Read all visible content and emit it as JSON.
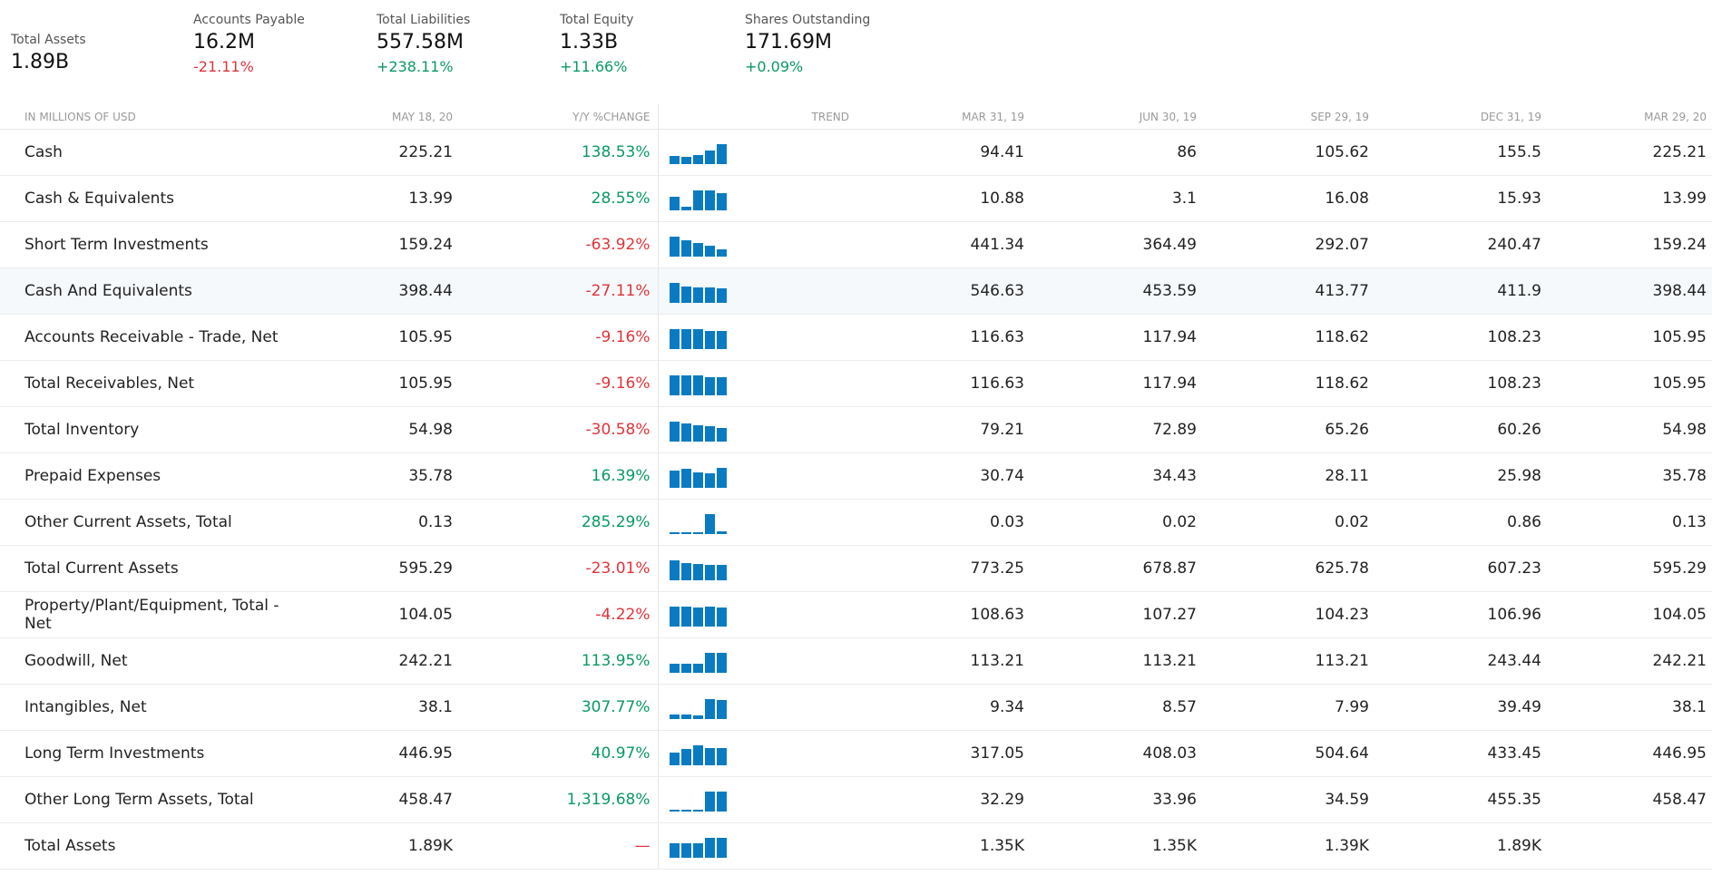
{
  "summary": [
    {
      "label": "Total Assets",
      "value": "1.89B",
      "change": "",
      "dir": ""
    },
    {
      "label": "Accounts Payable",
      "value": "16.2M",
      "change": "-21.11%",
      "dir": "neg"
    },
    {
      "label": "Total Liabilities",
      "value": "557.58M",
      "change": "+238.11%",
      "dir": "pos"
    },
    {
      "label": "Total Equity",
      "value": "1.33B",
      "change": "+11.66%",
      "dir": "pos"
    },
    {
      "label": "Shares Outstanding",
      "value": "171.69M",
      "change": "+0.09%",
      "dir": "pos"
    }
  ],
  "table": {
    "headers": {
      "name": "IN MILLIONS OF USD",
      "current": "MAY 18, 20",
      "change": "Y/Y %CHANGE",
      "trend": "TREND",
      "periods": [
        "MAR 31, 19",
        "JUN 30, 19",
        "SEP 29, 19",
        "DEC 31, 19",
        "MAR 29, 20"
      ]
    },
    "colors": {
      "positive": "#0a9a62",
      "negative": "#e0343a",
      "bar": "#0a7bc2"
    },
    "rows": [
      {
        "name": "Cash",
        "current": "225.21",
        "change": "138.53%",
        "dir": "pos",
        "values": [
          "94.41",
          "86",
          "105.62",
          "155.5",
          "225.21"
        ],
        "trend": [
          94.41,
          86,
          105.62,
          155.5,
          225.21
        ]
      },
      {
        "name": "Cash & Equivalents",
        "current": "13.99",
        "change": "28.55%",
        "dir": "pos",
        "values": [
          "10.88",
          "3.1",
          "16.08",
          "15.93",
          "13.99"
        ],
        "trend": [
          10.88,
          3.1,
          16.08,
          15.93,
          13.99
        ]
      },
      {
        "name": "Short Term Investments",
        "current": "159.24",
        "change": "-63.92%",
        "dir": "neg",
        "values": [
          "441.34",
          "364.49",
          "292.07",
          "240.47",
          "159.24"
        ],
        "trend": [
          441.34,
          364.49,
          292.07,
          240.47,
          159.24
        ]
      },
      {
        "name": "Cash And Equivalents",
        "current": "398.44",
        "change": "-27.11%",
        "dir": "neg",
        "values": [
          "546.63",
          "453.59",
          "413.77",
          "411.9",
          "398.44"
        ],
        "trend": [
          546.63,
          453.59,
          413.77,
          411.9,
          398.44
        ],
        "highlight": true
      },
      {
        "name": "Accounts Receivable - Trade, Net",
        "current": "105.95",
        "change": "-9.16%",
        "dir": "neg",
        "values": [
          "116.63",
          "117.94",
          "118.62",
          "108.23",
          "105.95"
        ],
        "trend": [
          116.63,
          117.94,
          118.62,
          108.23,
          105.95
        ]
      },
      {
        "name": "Total Receivables, Net",
        "current": "105.95",
        "change": "-9.16%",
        "dir": "neg",
        "values": [
          "116.63",
          "117.94",
          "118.62",
          "108.23",
          "105.95"
        ],
        "trend": [
          116.63,
          117.94,
          118.62,
          108.23,
          105.95
        ]
      },
      {
        "name": "Total Inventory",
        "current": "54.98",
        "change": "-30.58%",
        "dir": "neg",
        "values": [
          "79.21",
          "72.89",
          "65.26",
          "60.26",
          "54.98"
        ],
        "trend": [
          79.21,
          72.89,
          65.26,
          60.26,
          54.98
        ]
      },
      {
        "name": "Prepaid Expenses",
        "current": "35.78",
        "change": "16.39%",
        "dir": "pos",
        "values": [
          "30.74",
          "34.43",
          "28.11",
          "25.98",
          "35.78"
        ],
        "trend": [
          30.74,
          34.43,
          28.11,
          25.98,
          35.78
        ]
      },
      {
        "name": "Other Current Assets, Total",
        "current": "0.13",
        "change": "285.29%",
        "dir": "pos",
        "values": [
          "0.03",
          "0.02",
          "0.02",
          "0.86",
          "0.13"
        ],
        "trend": [
          0.03,
          0.02,
          0.02,
          0.86,
          0.13
        ]
      },
      {
        "name": "Total Current Assets",
        "current": "595.29",
        "change": "-23.01%",
        "dir": "neg",
        "values": [
          "773.25",
          "678.87",
          "625.78",
          "607.23",
          "595.29"
        ],
        "trend": [
          773.25,
          678.87,
          625.78,
          607.23,
          595.29
        ]
      },
      {
        "name": "Property/Plant/Equipment, Total - Net",
        "current": "104.05",
        "change": "-4.22%",
        "dir": "neg",
        "values": [
          "108.63",
          "107.27",
          "104.23",
          "106.96",
          "104.05"
        ],
        "trend": [
          108.63,
          107.27,
          104.23,
          106.96,
          104.05
        ]
      },
      {
        "name": "Goodwill, Net",
        "current": "242.21",
        "change": "113.95%",
        "dir": "pos",
        "values": [
          "113.21",
          "113.21",
          "113.21",
          "243.44",
          "242.21"
        ],
        "trend": [
          113.21,
          113.21,
          113.21,
          243.44,
          242.21
        ]
      },
      {
        "name": "Intangibles, Net",
        "current": "38.1",
        "change": "307.77%",
        "dir": "pos",
        "values": [
          "9.34",
          "8.57",
          "7.99",
          "39.49",
          "38.1"
        ],
        "trend": [
          9.34,
          8.57,
          7.99,
          39.49,
          38.1
        ]
      },
      {
        "name": "Long Term Investments",
        "current": "446.95",
        "change": "40.97%",
        "dir": "pos",
        "values": [
          "317.05",
          "408.03",
          "504.64",
          "433.45",
          "446.95"
        ],
        "trend": [
          317.05,
          408.03,
          504.64,
          433.45,
          446.95
        ]
      },
      {
        "name": "Other Long Term Assets, Total",
        "current": "458.47",
        "change": "1,319.68%",
        "dir": "pos",
        "values": [
          "32.29",
          "33.96",
          "34.59",
          "455.35",
          "458.47"
        ],
        "trend": [
          32.29,
          33.96,
          34.59,
          455.35,
          458.47
        ]
      },
      {
        "name": "Total Assets",
        "current": "1.89K",
        "change": "—",
        "dir": "neg",
        "values": [
          "1.35K",
          "1.35K",
          "1.39K",
          "1.89K",
          ""
        ],
        "trend": [
          1.35,
          1.35,
          1.39,
          1.89,
          1.89
        ]
      }
    ]
  }
}
